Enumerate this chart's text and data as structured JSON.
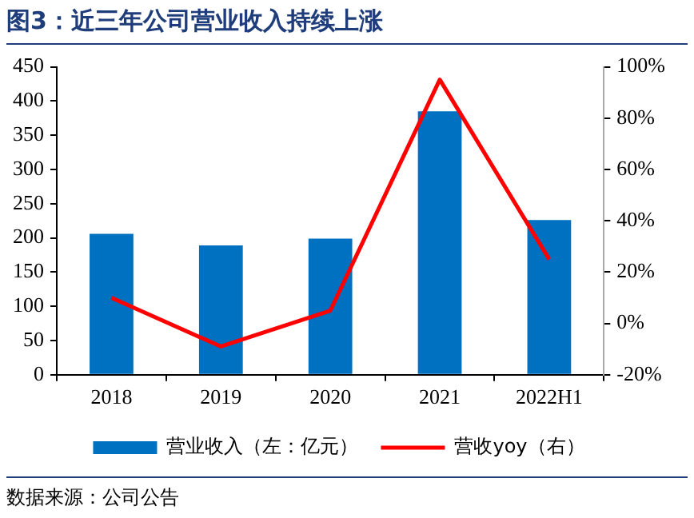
{
  "chart_data": {
    "type": "bar",
    "title": "图3：近三年公司营业收入持续上涨",
    "categories": [
      "2018",
      "2019",
      "2020",
      "2021",
      "2022H1"
    ],
    "series": [
      {
        "name": "营业收入（左：亿元）",
        "color": "#0070c0",
        "values": [
          206,
          189,
          199,
          385,
          226
        ]
      },
      {
        "name": "营收yoy（右）",
        "type": "line",
        "axis": "y2",
        "color": "#ff0000",
        "values": [
          10,
          -9,
          5,
          95,
          25
        ]
      }
    ],
    "ylim": [
      0,
      450
    ],
    "yticks": [
      0,
      50,
      100,
      150,
      200,
      250,
      300,
      350,
      400,
      450
    ],
    "y2lim": [
      -20,
      100
    ],
    "y2ticks": [
      {
        "value": -20,
        "label": "-20%"
      },
      {
        "value": 0,
        "label": "0%"
      },
      {
        "value": 20,
        "label": "20%"
      },
      {
        "value": 40,
        "label": "40%"
      },
      {
        "value": 60,
        "label": "60%"
      },
      {
        "value": 80,
        "label": "80%"
      },
      {
        "value": 100,
        "label": "100%"
      }
    ],
    "grid": false,
    "legend": "bottom",
    "marker": "none",
    "annotations": [
      "数据来源：公司公告"
    ]
  }
}
